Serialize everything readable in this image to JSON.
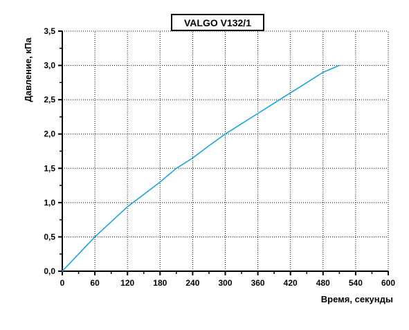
{
  "chart_data": {
    "type": "line",
    "title": "VALGO V132/1",
    "xlabel": "Время, секунды",
    "ylabel": "Давление, кПа",
    "xlim": [
      0,
      600
    ],
    "ylim": [
      0,
      3.5
    ],
    "x_ticks": [
      0,
      60,
      120,
      180,
      240,
      300,
      360,
      420,
      480,
      540,
      600
    ],
    "x_tick_labels": [
      "0",
      "60",
      "120",
      "180",
      "240",
      "300",
      "360",
      "420",
      "480",
      "540",
      "600"
    ],
    "y_ticks": [
      0,
      0.5,
      1.0,
      1.5,
      2.0,
      2.5,
      3.0,
      3.5
    ],
    "y_tick_labels": [
      "0,0",
      "0,5",
      "1,0",
      "1,5",
      "2,0",
      "2,5",
      "3,0",
      "3,5"
    ],
    "grid": true,
    "grid_style": "dotted",
    "line_color": "#1aa3dc",
    "series": [
      {
        "x": [
          0,
          30,
          60,
          90,
          120,
          150,
          180,
          210,
          240,
          270,
          300,
          330,
          360,
          390,
          420,
          450,
          480,
          510
        ],
        "y": [
          0.0,
          0.25,
          0.5,
          0.72,
          0.94,
          1.12,
          1.3,
          1.5,
          1.65,
          1.83,
          2.0,
          2.15,
          2.3,
          2.45,
          2.6,
          2.75,
          2.9,
          3.0
        ]
      }
    ]
  }
}
